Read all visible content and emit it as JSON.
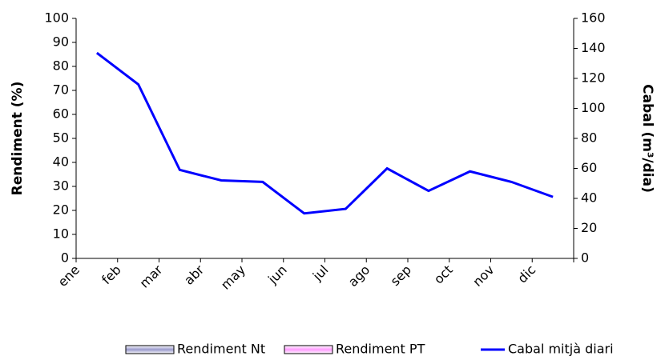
{
  "chart_data": {
    "type": "line",
    "categories": [
      "ene",
      "feb",
      "mar",
      "abr",
      "may",
      "jun",
      "jul",
      "ago",
      "sep",
      "oct",
      "nov",
      "dic"
    ],
    "ylabel": "Rendiment (%)",
    "y2label": "Cabal (m³/dia)",
    "ylim": [
      0,
      100
    ],
    "yticks": [
      0,
      10,
      20,
      30,
      40,
      50,
      60,
      70,
      80,
      90,
      100
    ],
    "y2lim": [
      0,
      160
    ],
    "y2ticks": [
      0,
      20,
      40,
      60,
      80,
      100,
      120,
      140,
      160
    ],
    "series": [
      {
        "name": "Rendiment Nt",
        "color": "#9999cc",
        "values": [
          null,
          null,
          null,
          null,
          null,
          null,
          null,
          null,
          null,
          null,
          null,
          null
        ]
      },
      {
        "name": "Rendiment PT",
        "color": "#ff99ff",
        "values": [
          null,
          null,
          null,
          null,
          null,
          null,
          null,
          null,
          null,
          null,
          null,
          null
        ]
      },
      {
        "name": "Cabal mitjà diari",
        "color": "#0000ff",
        "axis": "y2",
        "values": [
          137,
          116,
          59,
          52,
          51,
          30,
          33,
          60,
          45,
          58,
          51,
          41
        ]
      }
    ]
  }
}
